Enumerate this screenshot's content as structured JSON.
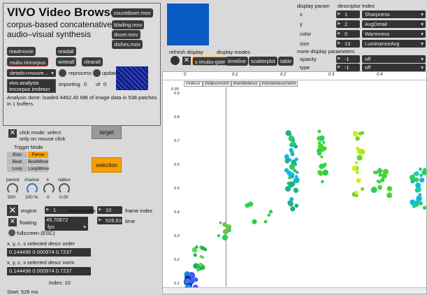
{
  "header": {
    "title": "VIVO Video Browser",
    "subtitle_line1": "corpus-based concatenative",
    "subtitle_line2": "audio–visual synthesis"
  },
  "movies": [
    "countdown.mov",
    "blading.mov",
    "dozer.mov",
    "dishes.mov"
  ],
  "buttons": {
    "readmovie": "readmovie",
    "readall": "readall",
    "mubu_imcorpus": "mubu imcorpus",
    "writeall": "writeall",
    "clearall": "clearall",
    "reprocess": "reprocess",
    "update": "update",
    "refresh_display": "refresh display",
    "s_imubu_gate": "s imubu-gate",
    "timeline": "timeline",
    "scatterplot": "scatterplot",
    "table": "table",
    "target": "target",
    "selection": "selection"
  },
  "details_menu": "details+mouve...",
  "details_list": [
    "vivo.analysis",
    "imcorpus imdescr"
  ],
  "importing": {
    "label": "importing",
    "value": "0",
    "of_label": "of",
    "of_value": "0"
  },
  "analysis_status": "Analysis done: loaded 4462.40 MB of image data in 538 patches in 1 buffers.",
  "click_mode": {
    "line1": "click mode: select",
    "line2": "only on mouse click"
  },
  "trigger_mode": {
    "title": "Trigger Mode",
    "options": [
      "Bow",
      "Fence",
      "Beat",
      "BeatMove",
      "Loop",
      "LoopMove"
    ],
    "selected": "Fence"
  },
  "dials": [
    {
      "label": "period",
      "value": "500"
    },
    {
      "label": "chance",
      "value": "100 %"
    },
    {
      "label": "k",
      "value": "0"
    },
    {
      "label": "radius",
      "value": "0.00"
    }
  ],
  "engine": {
    "label": "engine",
    "value": "1"
  },
  "movie_index": {
    "label": "movie index",
    "value": "10"
  },
  "frame_index": {
    "label": "frame index"
  },
  "floating": {
    "label": "floating",
    "fps_value": "45.70872",
    "fps_unit": "fps"
  },
  "time": {
    "value": "526.610",
    "label": "time"
  },
  "fullscreen": "fullscreen (ESC)",
  "selected_order": {
    "label": "x, y, c, s selected descr order",
    "value": "0.144496 0.000974 0.7237"
  },
  "selected_norm": {
    "label": "x, y, c, s selected descr norm",
    "value": "0.144496 0.000974 0.7237"
  },
  "index_text": "Index: 10",
  "start_text": "Start: 526 ms",
  "display": {
    "modes_label": "display modes",
    "param_header": "display param",
    "index_header": "descriptor index",
    "params": [
      {
        "name": "x",
        "index": "1",
        "descriptor": "Sharpness"
      },
      {
        "name": "y",
        "index": "2",
        "descriptor": "AvgDetail"
      },
      {
        "name": "color",
        "index": "0",
        "descriptor": "Warmness"
      },
      {
        "name": "size",
        "index": "13",
        "descriptor": "LuminanceAvg"
      }
    ],
    "more_label": "more display parameters",
    "more": [
      {
        "name": "opacity",
        "index": "-1",
        "value": "off"
      },
      {
        "name": "type",
        "index": "-1",
        "value": "off"
      }
    ]
  },
  "plot": {
    "tabs": [
      "imdescr",
      "imdescrnorm",
      "imorderdescr",
      "imorderdescrnorm"
    ],
    "xticks": [
      "0",
      "0.1",
      "0.2",
      "0.3",
      "0.4"
    ],
    "yticks": [
      "0.93",
      "0.9",
      "0.8",
      "0.7",
      "0.6",
      "0.5",
      "0.4",
      "0.3",
      "0.2",
      "0.1"
    ]
  },
  "colors": {
    "accent": "#f5a000",
    "preview": "#0a5bc4"
  }
}
